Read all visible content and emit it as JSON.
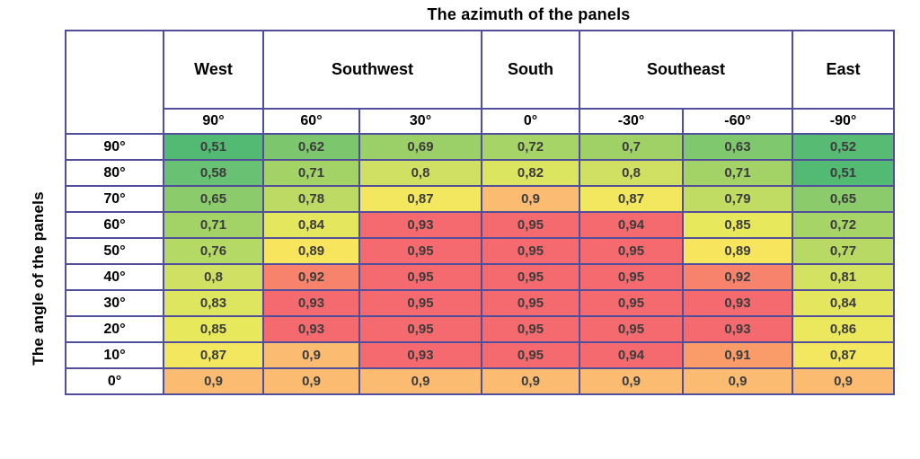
{
  "title": "The azimuth of the panels",
  "row_axis_label": "The angle of the panels",
  "colors": {
    "background": "#ffffff",
    "grid_border": "#514f9c",
    "cell_text": "#3c3c3c",
    "header_text": "#000000"
  },
  "chart_data": {
    "type": "heatmap",
    "title": "The azimuth of the panels",
    "row_axis_label": "The angle of the panels",
    "column_groups": [
      {
        "label": "West",
        "span": 1
      },
      {
        "label": "Southwest",
        "span": 2
      },
      {
        "label": "South",
        "span": 1
      },
      {
        "label": "Southeast",
        "span": 2
      },
      {
        "label": "East",
        "span": 1
      }
    ],
    "column_labels": [
      "90°",
      "60°",
      "30°",
      "0°",
      "-30°",
      "-60°",
      "-90°"
    ],
    "row_labels": [
      "90°",
      "80°",
      "70°",
      "60°",
      "50°",
      "40°",
      "30°",
      "20°",
      "10°",
      "0°"
    ],
    "rows": [
      [
        "0,51",
        "0,62",
        "0,69",
        "0,72",
        "0,7",
        "0,63",
        "0,52"
      ],
      [
        "0,58",
        "0,71",
        "0,8",
        "0,82",
        "0,8",
        "0,71",
        "0,51"
      ],
      [
        "0,65",
        "0,78",
        "0,87",
        "0,9",
        "0,87",
        "0,79",
        "0,65"
      ],
      [
        "0,71",
        "0,84",
        "0,93",
        "0,95",
        "0,94",
        "0,85",
        "0,72"
      ],
      [
        "0,76",
        "0,89",
        "0,95",
        "0,95",
        "0,95",
        "0,89",
        "0,77"
      ],
      [
        "0,8",
        "0,92",
        "0,95",
        "0,95",
        "0,95",
        "0,92",
        "0,81"
      ],
      [
        "0,83",
        "0,93",
        "0,95",
        "0,95",
        "0,95",
        "0,93",
        "0,84"
      ],
      [
        "0,85",
        "0,93",
        "0,95",
        "0,95",
        "0,95",
        "0,93",
        "0,86"
      ],
      [
        "0,87",
        "0,9",
        "0,93",
        "0,95",
        "0,94",
        "0,91",
        "0,87"
      ],
      [
        "0,9",
        "0,9",
        "0,9",
        "0,9",
        "0,9",
        "0,9",
        "0,9"
      ]
    ],
    "colormap": {
      "0,51": "#53ba74",
      "0,52": "#58bb74",
      "0,58": "#69c173",
      "0,62": "#7cc76e",
      "0,63": "#80c86d",
      "0,65": "#8bcb6b",
      "0,69": "#9bd068",
      "0,7": "#9fd167",
      "0,71": "#a3d267",
      "0,72": "#a7d466",
      "0,76": "#b5d965",
      "0,77": "#b8d964",
      "0,78": "#bddb64",
      "0,79": "#c0dc63",
      "0,8": "#cfe062",
      "0,81": "#d3e261",
      "0,82": "#dce55f",
      "0,83": "#dee65f",
      "0,84": "#e4e75e",
      "0,85": "#e8e85d",
      "0,86": "#ebe85d",
      "0,87": "#f2e75f",
      "0,89": "#f7e55e",
      "0,9": "#fbbc72",
      "0,91": "#f99c69",
      "0,92": "#f7836c",
      "0,93": "#f56a6e",
      "0,94": "#f56a6e",
      "0,95": "#f56a6e"
    }
  }
}
